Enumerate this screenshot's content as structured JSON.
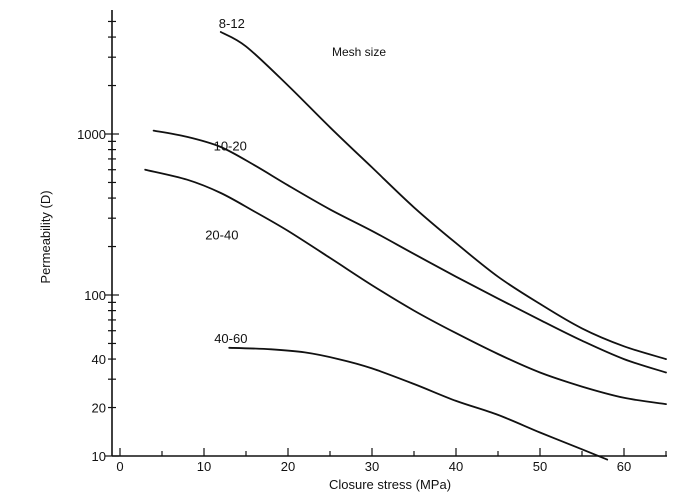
{
  "chart_data": {
    "type": "line",
    "title": "",
    "legend_title": "Mesh size",
    "xlabel": "Closure stress (MPa)",
    "ylabel": "Permeability (D)",
    "x_scale": "linear",
    "y_scale": "log",
    "xlim": [
      0,
      66
    ],
    "ylim": [
      10,
      5000
    ],
    "x_ticks": [
      0,
      10,
      20,
      30,
      40,
      50,
      60
    ],
    "x_tick_labels": [
      "0",
      "10",
      "20",
      "30",
      "40",
      "50",
      "60"
    ],
    "y_ticks": [
      10,
      20,
      40,
      100,
      1000
    ],
    "y_tick_labels": [
      "10",
      "20",
      "40",
      "100",
      "1000"
    ],
    "grid": false,
    "series": [
      {
        "name": "8-12",
        "x": [
          12,
          15,
          20,
          25,
          30,
          35,
          40,
          45,
          50,
          55,
          60,
          65
        ],
        "y": [
          4300,
          3500,
          2000,
          1100,
          620,
          350,
          210,
          130,
          88,
          62,
          48,
          40
        ]
      },
      {
        "name": "10-20",
        "x": [
          4,
          8,
          12,
          16,
          20,
          25,
          30,
          35,
          40,
          45,
          50,
          55,
          60,
          65
        ],
        "y": [
          1050,
          960,
          830,
          640,
          480,
          340,
          250,
          180,
          130,
          95,
          70,
          52,
          40,
          33
        ]
      },
      {
        "name": "20-40",
        "x": [
          3,
          8,
          12,
          16,
          20,
          25,
          30,
          35,
          40,
          45,
          50,
          55,
          60,
          65
        ],
        "y": [
          600,
          520,
          430,
          330,
          250,
          170,
          115,
          80,
          58,
          43,
          33,
          27,
          23,
          21
        ]
      },
      {
        "name": "40-60",
        "x": [
          13,
          18,
          22,
          26,
          30,
          35,
          40,
          45,
          50,
          55,
          58
        ],
        "y": [
          47,
          46,
          44,
          40,
          35,
          28,
          22,
          18,
          14,
          11,
          9.5
        ]
      }
    ]
  }
}
